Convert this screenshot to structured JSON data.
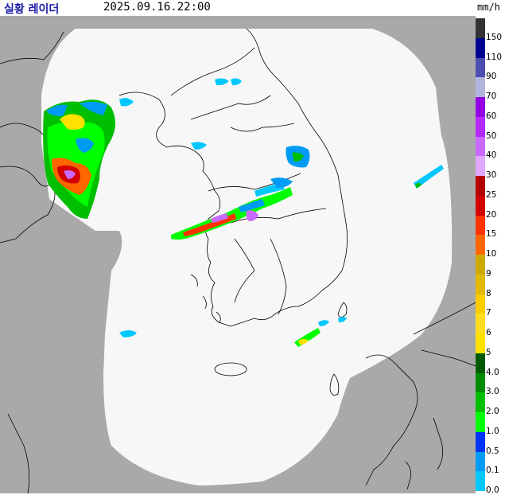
{
  "header": {
    "title": "실황 레이더",
    "timestamp": "2025.09.16.22:00",
    "unit": "mm/h"
  },
  "colors": {
    "outside": "#a9a9a9",
    "coverage": "#f7f7f7",
    "border": "#000000"
  },
  "legend": {
    "items": [
      {
        "label": "150",
        "color": "#333333"
      },
      {
        "label": "110",
        "color": "#000390"
      },
      {
        "label": "90",
        "color": "#4c4eb1"
      },
      {
        "label": "70",
        "color": "#b3b4de"
      },
      {
        "label": "60",
        "color": "#9300e4"
      },
      {
        "label": "50",
        "color": "#b329ff"
      },
      {
        "label": "40",
        "color": "#c969ff"
      },
      {
        "label": "30",
        "color": "#e0a9ff"
      },
      {
        "label": "25",
        "color": "#b40000"
      },
      {
        "label": "20",
        "color": "#d20000"
      },
      {
        "label": "15",
        "color": "#ff3200"
      },
      {
        "label": "10",
        "color": "#ff6600"
      },
      {
        "label": "9",
        "color": "#ccaa00"
      },
      {
        "label": "8",
        "color": "#e0b900"
      },
      {
        "label": "7",
        "color": "#f9cd00"
      },
      {
        "label": "6",
        "color": "#ffdc1f"
      },
      {
        "label": "5",
        "color": "#ffe100"
      },
      {
        "label": "4.0",
        "color": "#005a00"
      },
      {
        "label": "3.0",
        "color": "#008c00"
      },
      {
        "label": "2.0",
        "color": "#00be00"
      },
      {
        "label": "1.0",
        "color": "#00ff00"
      },
      {
        "label": "0.5",
        "color": "#0033f5"
      },
      {
        "label": "0.1",
        "color": "#009bf5"
      },
      {
        "label": "0.0",
        "color": "#00c8ff"
      }
    ]
  }
}
